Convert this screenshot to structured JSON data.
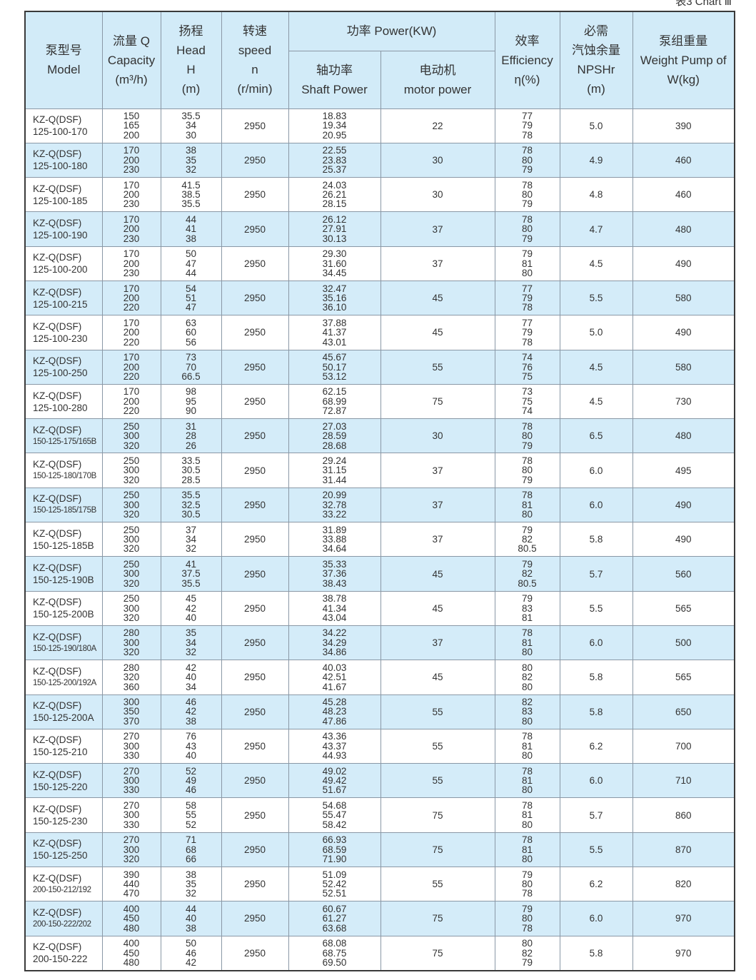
{
  "caption": "表3 Chart Ⅲ",
  "headers": {
    "model": [
      "泵型号",
      "Model"
    ],
    "capacity": [
      "流量 Q",
      "Capacity",
      "(m³/h)"
    ],
    "head": [
      "扬程",
      "Head",
      "H",
      "(m)"
    ],
    "speed": [
      "转速",
      "speed",
      "n",
      "(r/min)"
    ],
    "power": "功率 Power(KW)",
    "shaft": [
      "轴功率",
      "Shaft Power"
    ],
    "motor": [
      "电动机",
      "motor power"
    ],
    "efficiency": [
      "效率",
      "Efficiency",
      "η(%)"
    ],
    "npsh": [
      "必需",
      "汽蚀余量",
      "NPSHr",
      "(m)"
    ],
    "weight": [
      "泵组重量",
      "Weight Pump of",
      "W(kg)"
    ]
  },
  "colors": {
    "header_bg": "#d2ebf8",
    "stripe_bg": "#d4ecf9",
    "border": "#8a98a6"
  },
  "rows": [
    {
      "model": [
        "KZ-Q(DSF)",
        "125-100-170"
      ],
      "q": [
        "150",
        "165",
        "200"
      ],
      "h": [
        "35.5",
        "34",
        "30"
      ],
      "n": "2950",
      "shaft": [
        "18.83",
        "19.34",
        "20.95"
      ],
      "motor": "22",
      "eff": [
        "77",
        "79",
        "78"
      ],
      "npsh": "5.0",
      "w": "390"
    },
    {
      "model": [
        "KZ-Q(DSF)",
        "125-100-180"
      ],
      "q": [
        "170",
        "200",
        "230"
      ],
      "h": [
        "38",
        "35",
        "32"
      ],
      "n": "2950",
      "shaft": [
        "22.55",
        "23.83",
        "25.37"
      ],
      "motor": "30",
      "eff": [
        "78",
        "80",
        "79"
      ],
      "npsh": "4.9",
      "w": "460"
    },
    {
      "model": [
        "KZ-Q(DSF)",
        "125-100-185"
      ],
      "q": [
        "170",
        "200",
        "230"
      ],
      "h": [
        "41.5",
        "38.5",
        "35.5"
      ],
      "n": "2950",
      "shaft": [
        "24.03",
        "26.21",
        "28.15"
      ],
      "motor": "30",
      "eff": [
        "78",
        "80",
        "79"
      ],
      "npsh": "4.8",
      "w": "460"
    },
    {
      "model": [
        "KZ-Q(DSF)",
        "125-100-190"
      ],
      "q": [
        "170",
        "200",
        "230"
      ],
      "h": [
        "44",
        "41",
        "38"
      ],
      "n": "2950",
      "shaft": [
        "26.12",
        "27.91",
        "30.13"
      ],
      "motor": "37",
      "eff": [
        "78",
        "80",
        "79"
      ],
      "npsh": "4.7",
      "w": "480"
    },
    {
      "model": [
        "KZ-Q(DSF)",
        "125-100-200"
      ],
      "q": [
        "170",
        "200",
        "230"
      ],
      "h": [
        "50",
        "47",
        "44"
      ],
      "n": "2950",
      "shaft": [
        "29.30",
        "31.60",
        "34.45"
      ],
      "motor": "37",
      "eff": [
        "79",
        "81",
        "80"
      ],
      "npsh": "4.5",
      "w": "490"
    },
    {
      "model": [
        "KZ-Q(DSF)",
        "125-100-215"
      ],
      "q": [
        "170",
        "200",
        "220"
      ],
      "h": [
        "54",
        "51",
        "47"
      ],
      "n": "2950",
      "shaft": [
        "32.47",
        "35.16",
        "36.10"
      ],
      "motor": "45",
      "eff": [
        "77",
        "79",
        "78"
      ],
      "npsh": "5.5",
      "w": "580"
    },
    {
      "model": [
        "KZ-Q(DSF)",
        "125-100-230"
      ],
      "q": [
        "170",
        "200",
        "220"
      ],
      "h": [
        "63",
        "60",
        "56"
      ],
      "n": "2950",
      "shaft": [
        "37.88",
        "41.37",
        "43.01"
      ],
      "motor": "45",
      "eff": [
        "77",
        "79",
        "78"
      ],
      "npsh": "5.0",
      "w": "490"
    },
    {
      "model": [
        "KZ-Q(DSF)",
        "125-100-250"
      ],
      "q": [
        "170",
        "200",
        "220"
      ],
      "h": [
        "73",
        "70",
        "66.5"
      ],
      "n": "2950",
      "shaft": [
        "45.67",
        "50.17",
        "53.12"
      ],
      "motor": "55",
      "eff": [
        "74",
        "76",
        "75"
      ],
      "npsh": "4.5",
      "w": "580"
    },
    {
      "model": [
        "KZ-Q(DSF)",
        "125-100-280"
      ],
      "q": [
        "170",
        "200",
        "220"
      ],
      "h": [
        "98",
        "95",
        "90"
      ],
      "n": "2950",
      "shaft": [
        "62.15",
        "68.99",
        "72.87"
      ],
      "motor": "75",
      "eff": [
        "73",
        "75",
        "74"
      ],
      "npsh": "4.5",
      "w": "730"
    },
    {
      "model": [
        "KZ-Q(DSF)",
        "150-125-175/165B"
      ],
      "q": [
        "250",
        "300",
        "320"
      ],
      "h": [
        "31",
        "28",
        "26"
      ],
      "n": "2950",
      "shaft": [
        "27.03",
        "28.59",
        "28.68"
      ],
      "motor": "30",
      "eff": [
        "78",
        "80",
        "79"
      ],
      "npsh": "6.5",
      "w": "480"
    },
    {
      "model": [
        "KZ-Q(DSF)",
        "150-125-180/170B"
      ],
      "q": [
        "250",
        "300",
        "320"
      ],
      "h": [
        "33.5",
        "30.5",
        "28.5"
      ],
      "n": "2950",
      "shaft": [
        "29.24",
        "31.15",
        "31.44"
      ],
      "motor": "37",
      "eff": [
        "78",
        "80",
        "79"
      ],
      "npsh": "6.0",
      "w": "495"
    },
    {
      "model": [
        "KZ-Q(DSF)",
        "150-125-185/175B"
      ],
      "q": [
        "250",
        "300",
        "320"
      ],
      "h": [
        "35.5",
        "32.5",
        "30.5"
      ],
      "n": "2950",
      "shaft": [
        "20.99",
        "32.78",
        "33.22"
      ],
      "motor": "37",
      "eff": [
        "78",
        "81",
        "80"
      ],
      "npsh": "6.0",
      "w": "490"
    },
    {
      "model": [
        "KZ-Q(DSF)",
        "150-125-185B"
      ],
      "q": [
        "250",
        "300",
        "320"
      ],
      "h": [
        "37",
        "34",
        "32"
      ],
      "n": "2950",
      "shaft": [
        "31.89",
        "33.88",
        "34.64"
      ],
      "motor": "37",
      "eff": [
        "79",
        "82",
        "80.5"
      ],
      "npsh": "5.8",
      "w": "490"
    },
    {
      "model": [
        "KZ-Q(DSF)",
        "150-125-190B"
      ],
      "q": [
        "250",
        "300",
        "320"
      ],
      "h": [
        "41",
        "37.5",
        "35.5"
      ],
      "n": "2950",
      "shaft": [
        "35.33",
        "37.36",
        "38.43"
      ],
      "motor": "45",
      "eff": [
        "79",
        "82",
        "80.5"
      ],
      "npsh": "5.7",
      "w": "560"
    },
    {
      "model": [
        "KZ-Q(DSF)",
        "150-125-200B"
      ],
      "q": [
        "250",
        "300",
        "320"
      ],
      "h": [
        "45",
        "42",
        "40"
      ],
      "n": "2950",
      "shaft": [
        "38.78",
        "41.34",
        "43.04"
      ],
      "motor": "45",
      "eff": [
        "79",
        "83",
        "81"
      ],
      "npsh": "5.5",
      "w": "565"
    },
    {
      "model": [
        "KZ-Q(DSF)",
        "150-125-190/180A"
      ],
      "q": [
        "280",
        "300",
        "320"
      ],
      "h": [
        "35",
        "34",
        "32"
      ],
      "n": "2950",
      "shaft": [
        "34.22",
        "34.29",
        "34.86"
      ],
      "motor": "37",
      "eff": [
        "78",
        "81",
        "80"
      ],
      "npsh": "6.0",
      "w": "500"
    },
    {
      "model": [
        "KZ-Q(DSF)",
        "150-125-200/192A"
      ],
      "q": [
        "280",
        "320",
        "360"
      ],
      "h": [
        "42",
        "40",
        "34"
      ],
      "n": "2950",
      "shaft": [
        "40.03",
        "42.51",
        "41.67"
      ],
      "motor": "45",
      "eff": [
        "80",
        "82",
        "80"
      ],
      "npsh": "5.8",
      "w": "565"
    },
    {
      "model": [
        "KZ-Q(DSF)",
        "150-125-200A"
      ],
      "q": [
        "300",
        "350",
        "370"
      ],
      "h": [
        "46",
        "42",
        "38"
      ],
      "n": "2950",
      "shaft": [
        "45.28",
        "48.23",
        "47.86"
      ],
      "motor": "55",
      "eff": [
        "82",
        "83",
        "80"
      ],
      "npsh": "5.8",
      "w": "650"
    },
    {
      "model": [
        "KZ-Q(DSF)",
        "150-125-210"
      ],
      "q": [
        "270",
        "300",
        "330"
      ],
      "h": [
        "76",
        "43",
        "40"
      ],
      "n": "2950",
      "shaft": [
        "43.36",
        "43.37",
        "44.93"
      ],
      "motor": "55",
      "eff": [
        "78",
        "81",
        "80"
      ],
      "npsh": "6.2",
      "w": "700"
    },
    {
      "model": [
        "KZ-Q(DSF)",
        "150-125-220"
      ],
      "q": [
        "270",
        "300",
        "330"
      ],
      "h": [
        "52",
        "49",
        "46"
      ],
      "n": "2950",
      "shaft": [
        "49.02",
        "49.42",
        "51.67"
      ],
      "motor": "55",
      "eff": [
        "78",
        "81",
        "80"
      ],
      "npsh": "6.0",
      "w": "710"
    },
    {
      "model": [
        "KZ-Q(DSF)",
        "150-125-230"
      ],
      "q": [
        "270",
        "300",
        "330"
      ],
      "h": [
        "58",
        "55",
        "52"
      ],
      "n": "2950",
      "shaft": [
        "54.68",
        "55.47",
        "58.42"
      ],
      "motor": "75",
      "eff": [
        "78",
        "81",
        "80"
      ],
      "npsh": "5.7",
      "w": "860"
    },
    {
      "model": [
        "KZ-Q(DSF)",
        "150-125-250"
      ],
      "q": [
        "270",
        "300",
        "320"
      ],
      "h": [
        "71",
        "68",
        "66"
      ],
      "n": "2950",
      "shaft": [
        "66.93",
        "68.59",
        "71.90"
      ],
      "motor": "75",
      "eff": [
        "78",
        "81",
        "80"
      ],
      "npsh": "5.5",
      "w": "870"
    },
    {
      "model": [
        "KZ-Q(DSF)",
        "200-150-212/192"
      ],
      "q": [
        "390",
        "440",
        "470"
      ],
      "h": [
        "38",
        "35",
        "32"
      ],
      "n": "2950",
      "shaft": [
        "51.09",
        "52.42",
        "52.51"
      ],
      "motor": "55",
      "eff": [
        "79",
        "80",
        "78"
      ],
      "npsh": "6.2",
      "w": "820"
    },
    {
      "model": [
        "KZ-Q(DSF)",
        "200-150-222/202"
      ],
      "q": [
        "400",
        "450",
        "480"
      ],
      "h": [
        "44",
        "40",
        "38"
      ],
      "n": "2950",
      "shaft": [
        "60.67",
        "61.27",
        "63.68"
      ],
      "motor": "75",
      "eff": [
        "79",
        "80",
        "78"
      ],
      "npsh": "6.0",
      "w": "970"
    },
    {
      "model": [
        "KZ-Q(DSF)",
        "200-150-222"
      ],
      "q": [
        "400",
        "450",
        "480"
      ],
      "h": [
        "50",
        "46",
        "42"
      ],
      "n": "2950",
      "shaft": [
        "68.08",
        "68.75",
        "69.50"
      ],
      "motor": "75",
      "eff": [
        "80",
        "82",
        "79"
      ],
      "npsh": "5.8",
      "w": "970"
    }
  ]
}
